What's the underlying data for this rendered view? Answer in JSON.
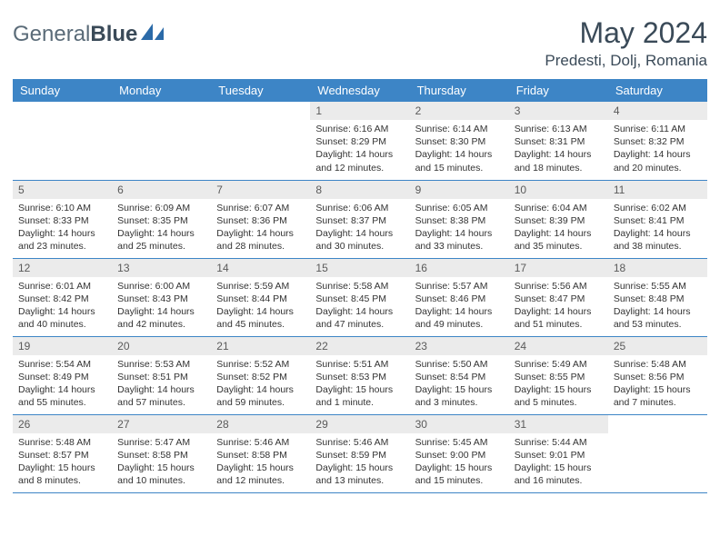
{
  "brand": {
    "part1": "General",
    "part2": "Blue"
  },
  "title": "May 2024",
  "location": "Predesti, Dolj, Romania",
  "colors": {
    "header_bg": "#3d85c6",
    "header_text": "#ffffff",
    "daynum_bg": "#ebebeb",
    "text": "#333333",
    "brand_gray": "#5a6b78",
    "row_border": "#3d85c6"
  },
  "fonts": {
    "title_size": 32,
    "location_size": 17,
    "th_size": 13,
    "cell_size": 10.5
  },
  "weekdays": [
    "Sunday",
    "Monday",
    "Tuesday",
    "Wednesday",
    "Thursday",
    "Friday",
    "Saturday"
  ],
  "weeks": [
    [
      {
        "empty": true
      },
      {
        "empty": true
      },
      {
        "empty": true
      },
      {
        "day": "1",
        "sunrise": "6:16 AM",
        "sunset": "8:29 PM",
        "daylight": "14 hours and 12 minutes."
      },
      {
        "day": "2",
        "sunrise": "6:14 AM",
        "sunset": "8:30 PM",
        "daylight": "14 hours and 15 minutes."
      },
      {
        "day": "3",
        "sunrise": "6:13 AM",
        "sunset": "8:31 PM",
        "daylight": "14 hours and 18 minutes."
      },
      {
        "day": "4",
        "sunrise": "6:11 AM",
        "sunset": "8:32 PM",
        "daylight": "14 hours and 20 minutes."
      }
    ],
    [
      {
        "day": "5",
        "sunrise": "6:10 AM",
        "sunset": "8:33 PM",
        "daylight": "14 hours and 23 minutes."
      },
      {
        "day": "6",
        "sunrise": "6:09 AM",
        "sunset": "8:35 PM",
        "daylight": "14 hours and 25 minutes."
      },
      {
        "day": "7",
        "sunrise": "6:07 AM",
        "sunset": "8:36 PM",
        "daylight": "14 hours and 28 minutes."
      },
      {
        "day": "8",
        "sunrise": "6:06 AM",
        "sunset": "8:37 PM",
        "daylight": "14 hours and 30 minutes."
      },
      {
        "day": "9",
        "sunrise": "6:05 AM",
        "sunset": "8:38 PM",
        "daylight": "14 hours and 33 minutes."
      },
      {
        "day": "10",
        "sunrise": "6:04 AM",
        "sunset": "8:39 PM",
        "daylight": "14 hours and 35 minutes."
      },
      {
        "day": "11",
        "sunrise": "6:02 AM",
        "sunset": "8:41 PM",
        "daylight": "14 hours and 38 minutes."
      }
    ],
    [
      {
        "day": "12",
        "sunrise": "6:01 AM",
        "sunset": "8:42 PM",
        "daylight": "14 hours and 40 minutes."
      },
      {
        "day": "13",
        "sunrise": "6:00 AM",
        "sunset": "8:43 PM",
        "daylight": "14 hours and 42 minutes."
      },
      {
        "day": "14",
        "sunrise": "5:59 AM",
        "sunset": "8:44 PM",
        "daylight": "14 hours and 45 minutes."
      },
      {
        "day": "15",
        "sunrise": "5:58 AM",
        "sunset": "8:45 PM",
        "daylight": "14 hours and 47 minutes."
      },
      {
        "day": "16",
        "sunrise": "5:57 AM",
        "sunset": "8:46 PM",
        "daylight": "14 hours and 49 minutes."
      },
      {
        "day": "17",
        "sunrise": "5:56 AM",
        "sunset": "8:47 PM",
        "daylight": "14 hours and 51 minutes."
      },
      {
        "day": "18",
        "sunrise": "5:55 AM",
        "sunset": "8:48 PM",
        "daylight": "14 hours and 53 minutes."
      }
    ],
    [
      {
        "day": "19",
        "sunrise": "5:54 AM",
        "sunset": "8:49 PM",
        "daylight": "14 hours and 55 minutes."
      },
      {
        "day": "20",
        "sunrise": "5:53 AM",
        "sunset": "8:51 PM",
        "daylight": "14 hours and 57 minutes."
      },
      {
        "day": "21",
        "sunrise": "5:52 AM",
        "sunset": "8:52 PM",
        "daylight": "14 hours and 59 minutes."
      },
      {
        "day": "22",
        "sunrise": "5:51 AM",
        "sunset": "8:53 PM",
        "daylight": "15 hours and 1 minute."
      },
      {
        "day": "23",
        "sunrise": "5:50 AM",
        "sunset": "8:54 PM",
        "daylight": "15 hours and 3 minutes."
      },
      {
        "day": "24",
        "sunrise": "5:49 AM",
        "sunset": "8:55 PM",
        "daylight": "15 hours and 5 minutes."
      },
      {
        "day": "25",
        "sunrise": "5:48 AM",
        "sunset": "8:56 PM",
        "daylight": "15 hours and 7 minutes."
      }
    ],
    [
      {
        "day": "26",
        "sunrise": "5:48 AM",
        "sunset": "8:57 PM",
        "daylight": "15 hours and 8 minutes."
      },
      {
        "day": "27",
        "sunrise": "5:47 AM",
        "sunset": "8:58 PM",
        "daylight": "15 hours and 10 minutes."
      },
      {
        "day": "28",
        "sunrise": "5:46 AM",
        "sunset": "8:58 PM",
        "daylight": "15 hours and 12 minutes."
      },
      {
        "day": "29",
        "sunrise": "5:46 AM",
        "sunset": "8:59 PM",
        "daylight": "15 hours and 13 minutes."
      },
      {
        "day": "30",
        "sunrise": "5:45 AM",
        "sunset": "9:00 PM",
        "daylight": "15 hours and 15 minutes."
      },
      {
        "day": "31",
        "sunrise": "5:44 AM",
        "sunset": "9:01 PM",
        "daylight": "15 hours and 16 minutes."
      },
      {
        "empty": true
      }
    ]
  ],
  "labels": {
    "sunrise": "Sunrise:",
    "sunset": "Sunset:",
    "daylight": "Daylight:"
  }
}
